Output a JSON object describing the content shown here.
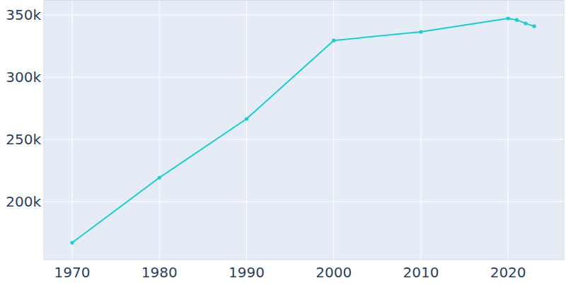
{
  "chart_data": {
    "type": "line",
    "x": [
      1970,
      1980,
      1990,
      2000,
      2010,
      2020,
      2021,
      2022,
      2023
    ],
    "values": [
      167000,
      219300,
      266500,
      329500,
      336400,
      347200,
      346000,
      343200,
      340900
    ],
    "color": "#17cfcf",
    "marker": "circle",
    "xlim": [
      1966.75,
      2026.4
    ],
    "xticks": [
      1970,
      1980,
      1990,
      2000,
      2010,
      2020
    ],
    "ylim": [
      153400,
      362000
    ],
    "yticks": [
      {
        "value": 200000,
        "label": "200k"
      },
      {
        "value": 250000,
        "label": "250k"
      },
      {
        "value": 300000,
        "label": "300k"
      },
      {
        "value": 350000,
        "label": "350k"
      }
    ],
    "grid": true
  }
}
